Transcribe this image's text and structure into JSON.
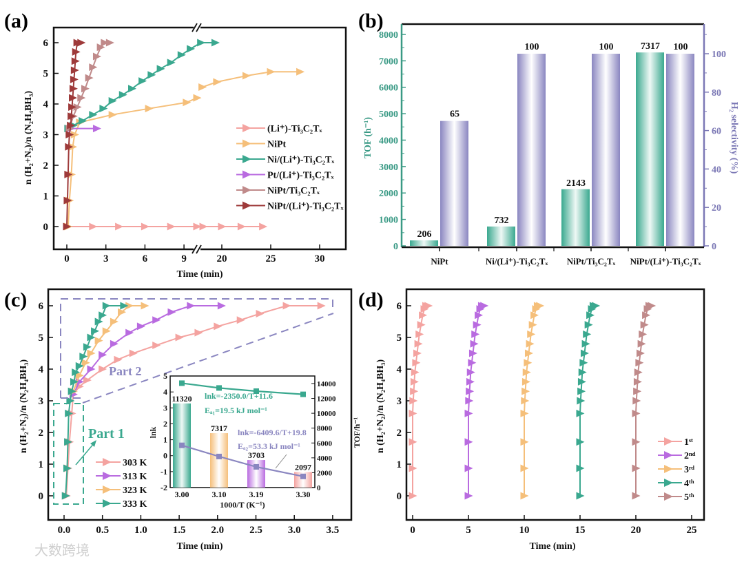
{
  "watermark": "大数跨境",
  "colors": {
    "pink": "#f4a3a0",
    "orange": "#f5bf7a",
    "teal": "#3aa88f",
    "purple": "#b96be0",
    "rosy": "#c08a8a",
    "darkred": "#9e3a3a",
    "lavender": "#8a86c0",
    "tealAxis": "#3a9a85",
    "lavAxis": "#7b78b5"
  },
  "chart_data": [
    {
      "panel": "(a)",
      "type": "line",
      "xlabel": "Time (min)",
      "ylabel": "n (H₂+N₂)/n (N₂H₄BH₃)",
      "xticks_left": [
        "0",
        "3",
        "6",
        "9"
      ],
      "xticks_right": [
        "20",
        "25",
        "30"
      ],
      "x_break": [
        10,
        18
      ],
      "yticks": [
        "0",
        "1",
        "2",
        "3",
        "4",
        "5",
        "6"
      ],
      "ylim": [
        -0.5,
        6.5
      ],
      "series": [
        {
          "name": "(Li⁺)-Ti₃C₂Tₓ",
          "color": "pink",
          "points": [
            [
              0,
              0
            ],
            [
              2,
              0
            ],
            [
              4,
              0
            ],
            [
              6,
              0
            ],
            [
              8,
              0
            ],
            [
              10,
              0
            ],
            [
              18.1,
              0
            ],
            [
              20,
              0
            ],
            [
              22,
              0
            ],
            [
              24.2,
              0
            ]
          ]
        },
        {
          "name": "NiPt",
          "color": "orange",
          "points": [
            [
              0.1,
              0
            ],
            [
              0.2,
              0.85
            ],
            [
              0.35,
              1.7
            ],
            [
              0.45,
              2.6
            ],
            [
              0.6,
              3
            ],
            [
              1,
              3.4
            ],
            [
              3.5,
              3.65
            ],
            [
              6.3,
              3.85
            ],
            [
              9.2,
              4.05
            ],
            [
              10,
              4.2
            ],
            [
              18,
              4.55
            ],
            [
              19.5,
              4.72
            ],
            [
              22.5,
              4.92
            ],
            [
              25,
              5.05
            ],
            [
              28,
              5.05
            ]
          ]
        },
        {
          "name": "Ni/(Li⁺)-Ti₃C₂Tₓ",
          "color": "teal",
          "points": [
            [
              0.1,
              3.2
            ],
            [
              0.5,
              3.3
            ],
            [
              1.2,
              3.45
            ],
            [
              2,
              3.65
            ],
            [
              2.8,
              3.85
            ],
            [
              3.5,
              4.1
            ],
            [
              4.3,
              4.3
            ],
            [
              5,
              4.5
            ],
            [
              5.8,
              4.75
            ],
            [
              6.5,
              4.95
            ],
            [
              7.2,
              5.15
            ],
            [
              8,
              5.35
            ],
            [
              8.8,
              5.6
            ],
            [
              9.5,
              5.8
            ],
            [
              10.3,
              6
            ],
            [
              11.4,
              6
            ]
          ]
        },
        {
          "name": "Pt/(Li⁺)-Ti₃C₂Tₓ",
          "color": "purple",
          "points": [
            [
              0.3,
              3.2
            ],
            [
              2.3,
              3.2
            ]
          ]
        },
        {
          "name": "NiPt/Ti₃C₂Tₓ",
          "color": "rosy",
          "points": [
            [
              0.2,
              3.2
            ],
            [
              0.5,
              3.6
            ],
            [
              0.8,
              3.9
            ],
            [
              1.1,
              4.2
            ],
            [
              1.4,
              4.5
            ],
            [
              1.7,
              4.85
            ],
            [
              2,
              5.2
            ],
            [
              2.3,
              5.55
            ],
            [
              2.6,
              5.85
            ],
            [
              2.9,
              6
            ],
            [
              3.3,
              6
            ]
          ]
        },
        {
          "name": "NiPt/(Li⁺)-Ti₃C₂Tₓ",
          "color": "darkred",
          "points": [
            [
              0,
              0
            ],
            [
              0.05,
              0.85
            ],
            [
              0.1,
              1.7
            ],
            [
              0.15,
              2.6
            ],
            [
              0.2,
              3
            ],
            [
              0.3,
              3.3
            ],
            [
              0.35,
              3.6
            ],
            [
              0.4,
              3.9
            ],
            [
              0.45,
              4.2
            ],
            [
              0.5,
              4.5
            ],
            [
              0.55,
              4.8
            ],
            [
              0.6,
              5.1
            ],
            [
              0.65,
              5.4
            ],
            [
              0.7,
              5.7
            ],
            [
              0.8,
              6
            ],
            [
              1.1,
              6
            ]
          ]
        }
      ]
    },
    {
      "panel": "(b)",
      "type": "bar",
      "categories": [
        "NiPt",
        "Ni/(Li⁺)-Ti₃C₂Tₓ",
        "NiPt/Ti₃C₂Tₓ",
        "NiPt/(Li⁺)-Ti₃C₂Tₓ"
      ],
      "ylabel_left": "TOF (h⁻¹)",
      "ylabel_right": "H₂ selectivity (%)",
      "yticks_left": [
        "0",
        "1000",
        "2000",
        "3000",
        "4000",
        "5000",
        "6000",
        "7000",
        "8000"
      ],
      "yticks_right": [
        "0",
        "20",
        "40",
        "60",
        "80",
        "100"
      ],
      "ylim_left": [
        0,
        8400
      ],
      "ylim_right": [
        0,
        115
      ],
      "series": [
        {
          "name": "TOF",
          "color": "teal",
          "values": [
            206,
            732,
            2143,
            7317
          ],
          "labels": [
            "206",
            "732",
            "2143",
            "7317"
          ]
        },
        {
          "name": "H₂ selectivity",
          "color": "lavender",
          "values": [
            65,
            100,
            100,
            100
          ],
          "labels": [
            "65",
            "100",
            "100",
            "100"
          ]
        }
      ]
    },
    {
      "panel": "(c)",
      "type": "line",
      "xlabel": "Time (min)",
      "ylabel": "n (H₂+N₂)/n (N₂H₄BH₃)",
      "xticks": [
        "0.0",
        "0.5",
        "1.0",
        "1.5",
        "2.0",
        "2.5",
        "3.0",
        "3.5"
      ],
      "yticks": [
        "0",
        "1",
        "2",
        "3",
        "4",
        "5",
        "6"
      ],
      "annotations": [
        "Part 1",
        "Part 2"
      ],
      "series": [
        {
          "name": "303 K",
          "color": "pink",
          "points": [
            [
              0.03,
              0
            ],
            [
              0.05,
              0.87
            ],
            [
              0.07,
              1.7
            ],
            [
              0.1,
              2.6
            ],
            [
              0.12,
              3.2
            ],
            [
              0.2,
              3.45
            ],
            [
              0.3,
              3.65
            ],
            [
              0.5,
              4.0
            ],
            [
              0.7,
              4.3
            ],
            [
              0.9,
              4.5
            ],
            [
              1.2,
              4.75
            ],
            [
              1.5,
              5.0
            ],
            [
              1.75,
              5.15
            ],
            [
              2.0,
              5.35
            ],
            [
              2.3,
              5.55
            ],
            [
              2.55,
              5.75
            ],
            [
              2.9,
              6
            ],
            [
              3.35,
              6
            ]
          ]
        },
        {
          "name": "313 K",
          "color": "purple",
          "points": [
            [
              0.12,
              3.2
            ],
            [
              0.2,
              3.6
            ],
            [
              0.35,
              4.0
            ],
            [
              0.5,
              4.45
            ],
            [
              0.65,
              4.8
            ],
            [
              0.85,
              5.15
            ],
            [
              1.0,
              5.35
            ],
            [
              1.2,
              5.55
            ],
            [
              1.4,
              5.8
            ],
            [
              1.65,
              6
            ],
            [
              2.05,
              6
            ]
          ]
        },
        {
          "name": "323 K",
          "color": "orange",
          "points": [
            [
              0.12,
              3.3
            ],
            [
              0.2,
              3.8
            ],
            [
              0.28,
              4.2
            ],
            [
              0.35,
              4.5
            ],
            [
              0.45,
              4.9
            ],
            [
              0.55,
              5.2
            ],
            [
              0.65,
              5.5
            ],
            [
              0.75,
              5.8
            ],
            [
              0.85,
              6
            ],
            [
              1.05,
              6
            ]
          ]
        },
        {
          "name": "333 K",
          "color": "teal",
          "points": [
            [
              0.02,
              0
            ],
            [
              0.04,
              0.87
            ],
            [
              0.05,
              1.7
            ],
            [
              0.06,
              2.6
            ],
            [
              0.08,
              3.0
            ],
            [
              0.1,
              3.3
            ],
            [
              0.13,
              3.6
            ],
            [
              0.15,
              3.9
            ],
            [
              0.2,
              4.1
            ],
            [
              0.25,
              4.4
            ],
            [
              0.3,
              4.7
            ],
            [
              0.35,
              5.0
            ],
            [
              0.4,
              5.2
            ],
            [
              0.45,
              5.5
            ],
            [
              0.5,
              5.7
            ],
            [
              0.55,
              6
            ],
            [
              0.78,
              6
            ]
          ]
        }
      ],
      "inset": {
        "type": "bar+line",
        "xlabel": "1000/T (K⁻¹)",
        "ylabel_left": "lnk",
        "ylabel_right": "TOF/h⁻¹",
        "categories": [
          "3.00",
          "3.10",
          "3.19",
          "3.30"
        ],
        "yticks_left": [
          "-2",
          "-1",
          "0",
          "1",
          "2",
          "3",
          "4",
          "5"
        ],
        "ylim_left": [
          -2,
          5
        ],
        "yticks_right": [
          "0",
          "2000",
          "4000",
          "6000",
          "8000",
          "10000",
          "12000",
          "14000"
        ],
        "ylim_right": [
          0,
          14000
        ],
        "tof": {
          "values": [
            11320,
            7317,
            3703,
            2097
          ],
          "labels": [
            "11320",
            "7317",
            "3703",
            "2097"
          ],
          "colors": [
            "teal",
            "orange",
            "purple",
            "pink"
          ]
        },
        "lines": [
          {
            "name": "part1",
            "color": "teal",
            "values": [
              4.55,
              4.25,
              4.05,
              3.85
            ],
            "equation": "lnk=-2350.0/T+11.6",
            "ea": "Eₐ₁=19.5 kJ mol⁻¹"
          },
          {
            "name": "part2",
            "color": "lavender",
            "values": [
              0.65,
              -0.05,
              -0.7,
              -1.3
            ],
            "equation": "lnk=-6409.6/T+19.8",
            "ea": "Eₐ₂=53.3 kJ mol⁻¹"
          }
        ]
      }
    },
    {
      "panel": "(d)",
      "type": "line",
      "xlabel": "Time (min)",
      "ylabel": "n (H₂+N₂)/n (N₂H₄BH₃)",
      "xticks": [
        "0",
        "5",
        "10",
        "15",
        "20",
        "25"
      ],
      "yticks": [
        "0",
        "1",
        "2",
        "3",
        "4",
        "5",
        "6"
      ],
      "base_curve": [
        [
          0,
          0
        ],
        [
          0,
          0.87
        ],
        [
          0,
          1.7
        ],
        [
          0,
          2.6
        ],
        [
          0.05,
          3.0
        ],
        [
          0.1,
          3.3
        ],
        [
          0.15,
          3.6
        ],
        [
          0.2,
          3.9
        ],
        [
          0.3,
          4.2
        ],
        [
          0.4,
          4.5
        ],
        [
          0.5,
          4.8
        ],
        [
          0.6,
          5.1
        ],
        [
          0.75,
          5.4
        ],
        [
          0.9,
          5.7
        ],
        [
          1.05,
          5.9
        ],
        [
          1.2,
          6
        ],
        [
          1.4,
          6
        ]
      ],
      "series": [
        {
          "name": "1ˢᵗ",
          "color": "pink",
          "offset": 0
        },
        {
          "name": "2ⁿᵈ",
          "color": "purple",
          "offset": 5
        },
        {
          "name": "3ʳᵈ",
          "color": "orange",
          "offset": 10
        },
        {
          "name": "4ᵗʰ",
          "color": "teal",
          "offset": 15
        },
        {
          "name": "5ᵗʰ",
          "color": "rosy",
          "offset": 20
        }
      ]
    }
  ]
}
